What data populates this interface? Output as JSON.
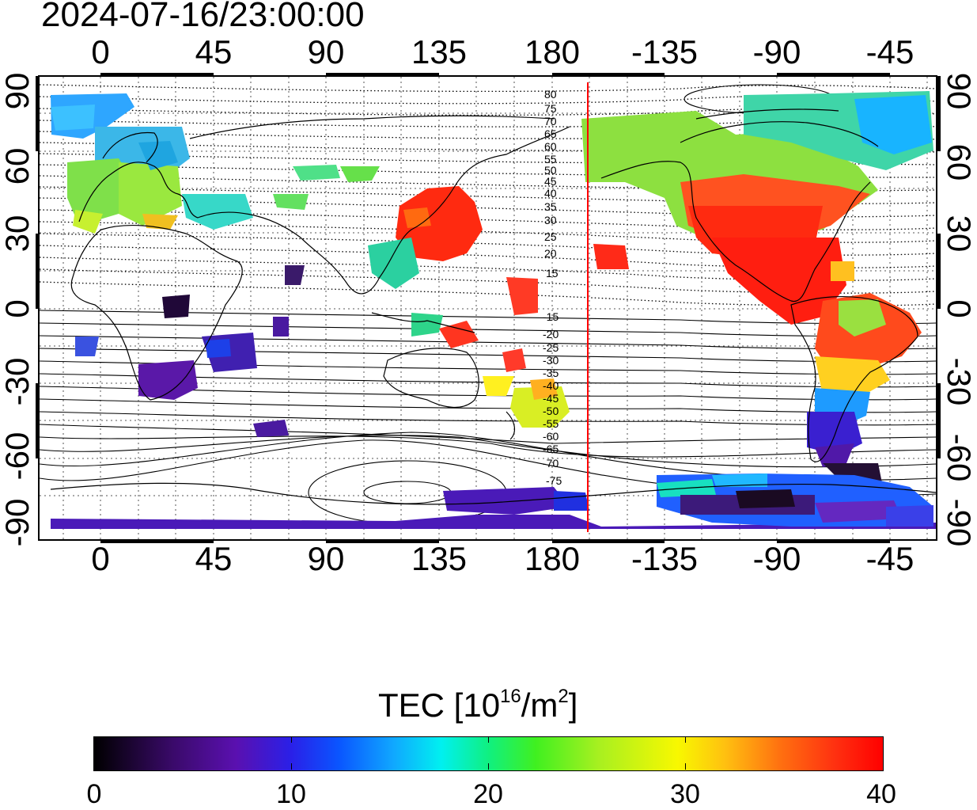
{
  "timestamp": "2024-07-16/23:00:00",
  "x_ticks": [
    "0",
    "45",
    "90",
    "135",
    "180",
    "-135",
    "-90",
    "-45"
  ],
  "y_ticks": [
    "90",
    "60",
    "30",
    "0",
    "-30",
    "-60",
    "-90"
  ],
  "contour_labels_north": [
    "80",
    "75",
    "70",
    "65",
    "60",
    "55",
    "50",
    "45",
    "40",
    "35",
    "30",
    "25",
    "20",
    "15"
  ],
  "contour_labels_south": [
    "-15",
    "-20",
    "-25",
    "-30",
    "-35",
    "-40",
    "-45",
    "-50",
    "-55",
    "-60",
    "-65",
    "-70",
    "-75"
  ],
  "colorbar": {
    "label_prefix": "TEC  [10",
    "label_exp": "16",
    "label_mid": "/m",
    "label_exp2": "2",
    "label_suffix": "]",
    "ticks": [
      "0",
      "10",
      "20",
      "30",
      "40"
    ],
    "min": 0,
    "max": 40
  },
  "terminator_longitude": 195,
  "colors": {
    "terminator": "#ff0000",
    "grid": "#000000",
    "coast": "#000000"
  }
}
